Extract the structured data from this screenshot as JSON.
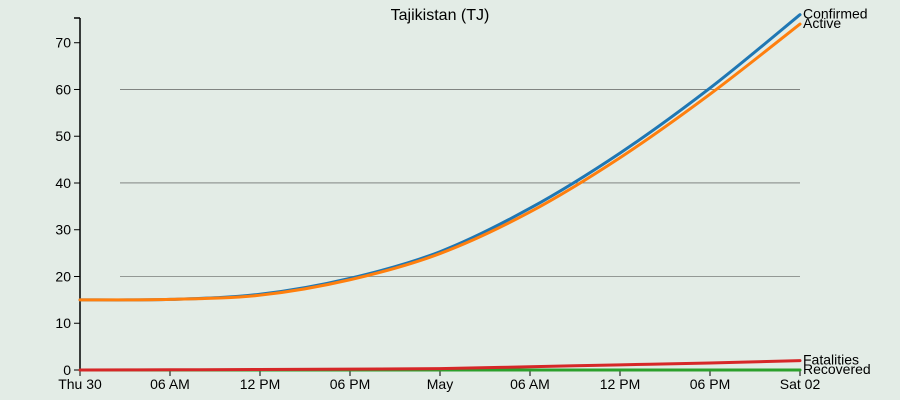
{
  "chart_data": {
    "type": "line",
    "title": "Tajikistan (TJ)",
    "xlabel": "",
    "ylabel": "",
    "x": [
      "2020-04-30T00:00",
      "2020-04-30T06:00",
      "2020-04-30T12:00",
      "2020-04-30T18:00",
      "2020-05-01T00:00",
      "2020-05-01T06:00",
      "2020-05-01T12:00",
      "2020-05-01T18:00",
      "2020-05-02T00:00"
    ],
    "x_tick_labels": [
      "Thu 30",
      "06 AM",
      "12 PM",
      "06 PM",
      "May",
      "06 AM",
      "12 PM",
      "06 PM",
      "Sat 02"
    ],
    "xlim": [
      "2020-04-30T00:00",
      "2020-05-02T00:00"
    ],
    "ylim": [
      0,
      77
    ],
    "y_ticks": [
      0,
      10,
      20,
      30,
      40,
      50,
      60,
      70
    ],
    "gridlines_y": [
      20,
      40,
      60
    ],
    "legend": "end-of-line labels",
    "series": [
      {
        "name": "Confirmed",
        "color": "#1f77b4",
        "values": [
          15,
          15.1,
          16.2,
          19.6,
          25.3,
          34.6,
          46.4,
          60.3,
          76
        ]
      },
      {
        "name": "Active",
        "color": "#ff7f0e",
        "values": [
          15,
          15.1,
          16.0,
          19.3,
          24.9,
          33.8,
          45.4,
          59.0,
          74
        ]
      },
      {
        "name": "Fatalities",
        "color": "#d62728",
        "values": [
          0,
          0.05,
          0.1,
          0.2,
          0.3,
          0.7,
          1.1,
          1.5,
          2
        ]
      },
      {
        "name": "Recovered",
        "color": "#2ca02c",
        "values": [
          0,
          0,
          0,
          0,
          0,
          0,
          0,
          0,
          0
        ]
      }
    ]
  }
}
